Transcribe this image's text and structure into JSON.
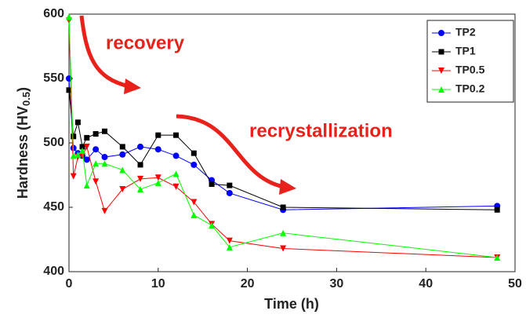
{
  "chart_data": {
    "type": "line",
    "x_label": "Time (h)",
    "y_label": "Hardness (HV",
    "y_label_sub": "0.5",
    "y_label_end": ")",
    "annotations": [
      "recovery",
      "recrystallization"
    ],
    "x": [
      0,
      0.5,
      1,
      1.5,
      2,
      3,
      4,
      6,
      8,
      10,
      12,
      14,
      16,
      18,
      24,
      48
    ],
    "series": [
      {
        "name": "TP2",
        "color": "#0000ff",
        "marker": "circle",
        "values": [
          550,
          496,
          492,
          490,
          487,
          495,
          489,
          491,
          497,
          495,
          490,
          483,
          471,
          461,
          448,
          451
        ]
      },
      {
        "name": "TP1",
        "color": "#000000",
        "marker": "square",
        "values": [
          541,
          505,
          516,
          497,
          504,
          507,
          509,
          497,
          483,
          506,
          506,
          492,
          468,
          467,
          450,
          448
        ]
      },
      {
        "name": "TP0.5",
        "color": "#ff0000",
        "marker": "triangle-down",
        "values": [
          595,
          474,
          489,
          490,
          497,
          470,
          447,
          464,
          472,
          473,
          466,
          454,
          437,
          424,
          418,
          411
        ]
      },
      {
        "name": "TP0.2",
        "color": "#00ff00",
        "marker": "triangle-up",
        "values": [
          598,
          490,
          491,
          494,
          467,
          484,
          484,
          479,
          464,
          469,
          476,
          444,
          436,
          419,
          430,
          411
        ]
      }
    ],
    "xlim": [
      0,
      50
    ],
    "xticks": [
      0,
      10,
      20,
      30,
      40,
      50
    ],
    "ylim": [
      400,
      600
    ],
    "yticks": [
      400,
      450,
      500,
      550,
      600
    ],
    "grid": false,
    "legend": "upper right"
  }
}
